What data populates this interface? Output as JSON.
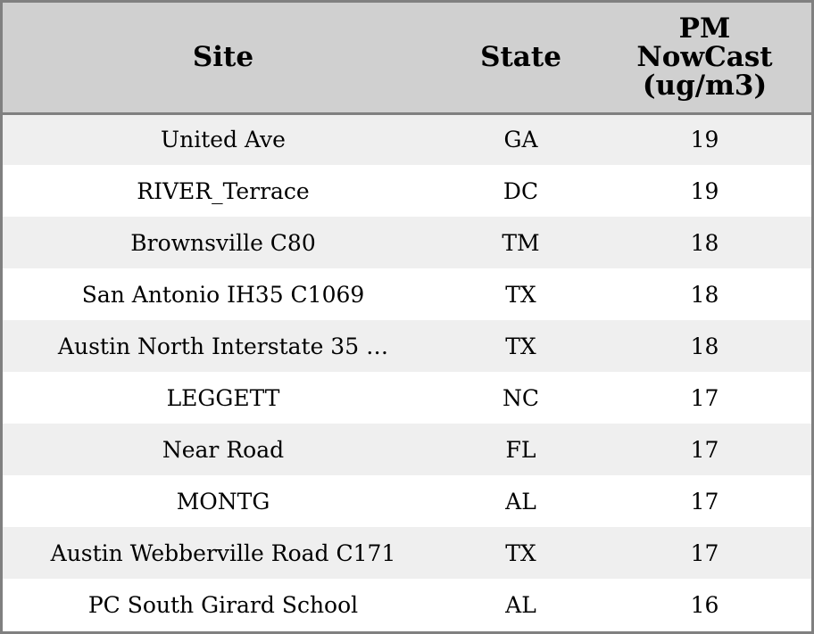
{
  "chart_data": {
    "type": "table",
    "columns": [
      "Site",
      "State",
      "PM NowCast (ug/m3)"
    ],
    "header_lines": [
      [
        "Site"
      ],
      [
        "State"
      ],
      [
        "PM",
        "NowCast",
        "(ug/m3)"
      ]
    ],
    "rows": [
      [
        "United Ave",
        "GA",
        "19"
      ],
      [
        "RIVER_Terrace",
        "DC",
        "19"
      ],
      [
        "Brownsville C80",
        "TM",
        "18"
      ],
      [
        "San Antonio IH35 C1069",
        "TX",
        "18"
      ],
      [
        "Austin North Interstate 35 …",
        "TX",
        "18"
      ],
      [
        "LEGGETT",
        "NC",
        "17"
      ],
      [
        "Near Road",
        "FL",
        "17"
      ],
      [
        "MONTG",
        "AL",
        "17"
      ],
      [
        "Austin Webberville Road C171",
        "TX",
        "17"
      ],
      [
        "PC South Girard School",
        "AL",
        "16"
      ]
    ]
  }
}
